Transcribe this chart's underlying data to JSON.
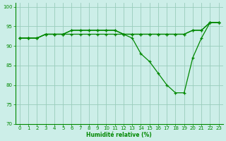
{
  "xlabel": "Humidité relative (%)",
  "bg_color": "#cceee8",
  "grid_color": "#99ccbb",
  "line_color": "#008800",
  "ylim": [
    70,
    101
  ],
  "xlim": [
    -0.5,
    23.5
  ],
  "yticks": [
    70,
    75,
    80,
    85,
    90,
    95,
    100
  ],
  "xticks": [
    0,
    1,
    2,
    3,
    4,
    5,
    6,
    7,
    8,
    9,
    10,
    11,
    12,
    13,
    14,
    15,
    16,
    17,
    18,
    19,
    20,
    21,
    22,
    23
  ],
  "s1": [
    92,
    92,
    92,
    93,
    93,
    93,
    93,
    93,
    93,
    93,
    93,
    93,
    93,
    93,
    93,
    93,
    93,
    93,
    93,
    93,
    94,
    94,
    96,
    96
  ],
  "s2": [
    92,
    92,
    92,
    93,
    93,
    93,
    94,
    94,
    94,
    94,
    94,
    94,
    93,
    93,
    93,
    93,
    93,
    93,
    93,
    93,
    94,
    94,
    96,
    96
  ],
  "s3": [
    92,
    92,
    92,
    93,
    93,
    93,
    94,
    94,
    94,
    94,
    94,
    94,
    93,
    92,
    88,
    86,
    83,
    80,
    78,
    78,
    87,
    92,
    96,
    96
  ]
}
